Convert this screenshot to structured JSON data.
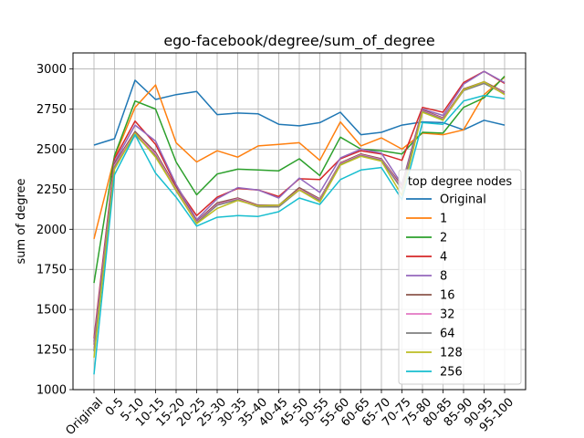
{
  "chart_data": {
    "type": "line",
    "title": "ego-facebook/degree/sum_of_degree",
    "xlabel": "",
    "ylabel": "sum of degree",
    "ylim": [
      1000,
      3100
    ],
    "yticks": [
      1000,
      1250,
      1500,
      1750,
      2000,
      2250,
      2500,
      2750,
      3000
    ],
    "grid": true,
    "legend": {
      "title": "top degree nodes",
      "placement": "center-right"
    },
    "categories": [
      "Original",
      "0-5",
      "5-10",
      "10-15",
      "15-20",
      "20-25",
      "25-30",
      "30-35",
      "35-40",
      "40-45",
      "45-50",
      "50-55",
      "55-60",
      "60-65",
      "65-70",
      "70-75",
      "75-80",
      "80-85",
      "85-90",
      "90-95",
      "95-100"
    ],
    "series": [
      {
        "name": "Original",
        "color": "#1f77b4",
        "values": [
          2525,
          2565,
          2930,
          2810,
          2840,
          2860,
          2715,
          2725,
          2720,
          2655,
          2645,
          2665,
          2730,
          2590,
          2605,
          2650,
          2670,
          2665,
          2620,
          2680,
          2650
        ]
      },
      {
        "name": "1",
        "color": "#ff7f0e",
        "values": [
          1940,
          2450,
          2760,
          2900,
          2540,
          2420,
          2490,
          2450,
          2520,
          2530,
          2540,
          2430,
          2670,
          2520,
          2570,
          2500,
          2600,
          2590,
          2620,
          2840,
          2950
        ]
      },
      {
        "name": "2",
        "color": "#2ca02c",
        "values": [
          1665,
          2460,
          2800,
          2750,
          2420,
          2215,
          2345,
          2375,
          2370,
          2365,
          2440,
          2335,
          2575,
          2500,
          2490,
          2470,
          2605,
          2600,
          2760,
          2820,
          2955
        ]
      },
      {
        "name": "4",
        "color": "#d62728",
        "values": [
          1320,
          2440,
          2675,
          2530,
          2270,
          2085,
          2200,
          2255,
          2245,
          2205,
          2315,
          2310,
          2440,
          2490,
          2470,
          2430,
          2760,
          2730,
          2915,
          2985,
          2910
        ]
      },
      {
        "name": "8",
        "color": "#9467bd",
        "values": [
          1300,
          2420,
          2650,
          2550,
          2280,
          2060,
          2190,
          2260,
          2245,
          2195,
          2320,
          2230,
          2445,
          2500,
          2475,
          2280,
          2750,
          2710,
          2905,
          2985,
          2915
        ]
      },
      {
        "name": "16",
        "color": "#8c564b",
        "values": [
          1280,
          2410,
          2610,
          2480,
          2260,
          2050,
          2165,
          2195,
          2150,
          2150,
          2260,
          2190,
          2415,
          2470,
          2440,
          2270,
          2745,
          2695,
          2875,
          2920,
          2855
        ]
      },
      {
        "name": "32",
        "color": "#e377c2",
        "values": [
          1260,
          2400,
          2600,
          2470,
          2250,
          2045,
          2155,
          2190,
          2145,
          2145,
          2250,
          2185,
          2410,
          2465,
          2435,
          2260,
          2740,
          2690,
          2870,
          2915,
          2850
        ]
      },
      {
        "name": "64",
        "color": "#7f7f7f",
        "values": [
          1240,
          2390,
          2590,
          2460,
          2240,
          2040,
          2150,
          2185,
          2140,
          2140,
          2245,
          2180,
          2405,
          2460,
          2430,
          2250,
          2735,
          2685,
          2865,
          2910,
          2845
        ]
      },
      {
        "name": "128",
        "color": "#bcbd22",
        "values": [
          1200,
          2375,
          2600,
          2450,
          2245,
          2035,
          2130,
          2180,
          2145,
          2150,
          2245,
          2170,
          2400,
          2455,
          2425,
          2210,
          2730,
          2680,
          2870,
          2920,
          2840
        ]
      },
      {
        "name": "256",
        "color": "#17becf",
        "values": [
          1095,
          2340,
          2590,
          2350,
          2200,
          2020,
          2075,
          2085,
          2080,
          2110,
          2195,
          2155,
          2310,
          2370,
          2385,
          2185,
          2665,
          2655,
          2800,
          2835,
          2815
        ]
      }
    ]
  }
}
